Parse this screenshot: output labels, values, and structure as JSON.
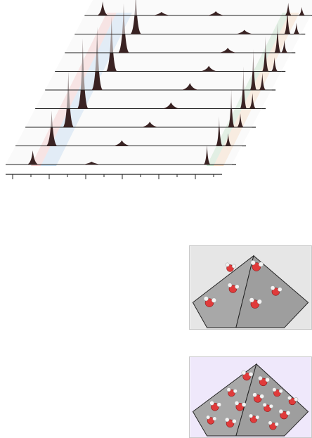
{
  "figure": {
    "panel_count": 3,
    "waterfall": {
      "trace_count": 9,
      "x_tick_count": 12,
      "highlight_bands": [
        {
          "name": "left-band-red",
          "color": "#f4a6a6"
        },
        {
          "name": "left-band-blue",
          "color": "#9cc8ec"
        },
        {
          "name": "right-band-green",
          "color": "#9fd4a8"
        },
        {
          "name": "right-band-orange",
          "color": "#f5c49a"
        }
      ],
      "colors": {
        "plane_fill": "#f6f6f6",
        "plane_stroke": "#202020",
        "peak_fill": "#3a2323",
        "axis": "#202020"
      }
    },
    "insets": [
      {
        "name": "few-water-cluster",
        "background": "#e6e6e6",
        "molecules": 6
      },
      {
        "name": "many-water-cluster",
        "background": "#efe8fb",
        "molecules": 14
      }
    ],
    "molecule_colors": {
      "oxygen": "#e03b3b",
      "hydrogen": "#f2f2f2",
      "pyramid_face": "#9e9e9e"
    }
  }
}
